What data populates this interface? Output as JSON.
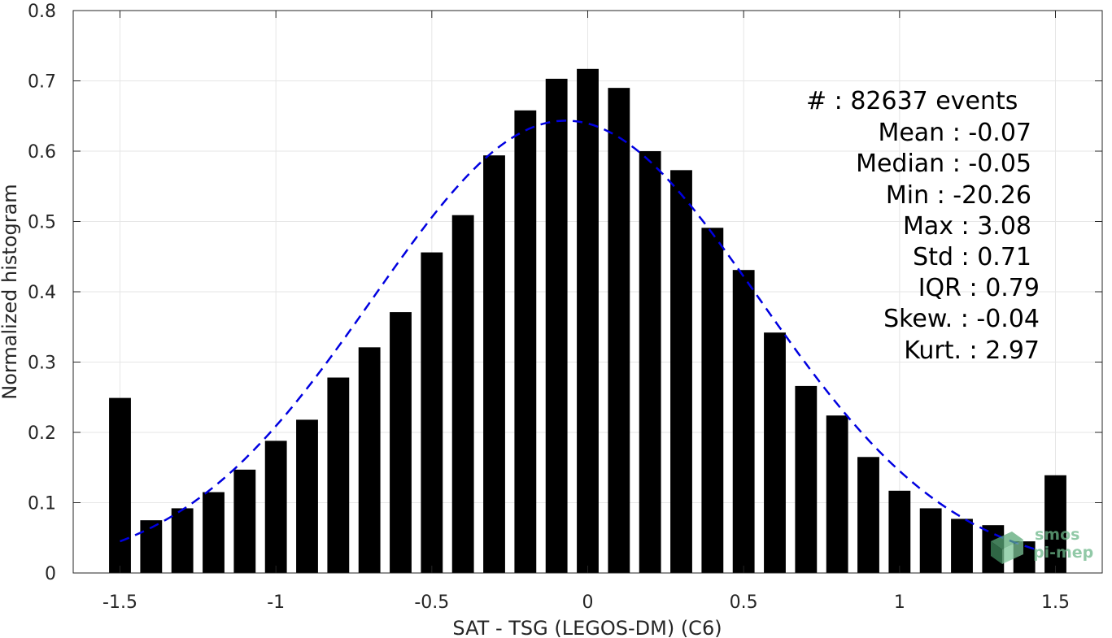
{
  "chart_data": {
    "type": "bar",
    "xlabel": "SAT - TSG (LEGOS-DM) (C6)",
    "ylabel": "Normalized histogram",
    "xlim": [
      -1.65,
      1.65
    ],
    "ylim": [
      0,
      0.8
    ],
    "xticks": [
      "-1.5",
      "-1",
      "-0.5",
      "0",
      "0.5",
      "1",
      "1.5"
    ],
    "xtick_values": [
      -1.5,
      -1,
      -0.5,
      0,
      0.5,
      1,
      1.5
    ],
    "yticks": [
      "0",
      "0.1",
      "0.2",
      "0.3",
      "0.4",
      "0.5",
      "0.6",
      "0.7",
      "0.8"
    ],
    "ytick_values": [
      0,
      0.1,
      0.2,
      0.3,
      0.4,
      0.5,
      0.6,
      0.7,
      0.8
    ],
    "grid": true,
    "bar_color": "#000000",
    "bin_width": 0.1,
    "x": [
      -1.5,
      -1.4,
      -1.3,
      -1.2,
      -1.1,
      -1.0,
      -0.9,
      -0.8,
      -0.7,
      -0.6,
      -0.5,
      -0.4,
      -0.3,
      -0.2,
      -0.1,
      0.0,
      0.1,
      0.2,
      0.3,
      0.4,
      0.5,
      0.6,
      0.7,
      0.8,
      0.9,
      1.0,
      1.1,
      1.2,
      1.3,
      1.4,
      1.5
    ],
    "values": [
      0.249,
      0.075,
      0.092,
      0.115,
      0.147,
      0.188,
      0.218,
      0.278,
      0.321,
      0.371,
      0.456,
      0.509,
      0.594,
      0.658,
      0.703,
      0.717,
      0.69,
      0.6,
      0.573,
      0.491,
      0.431,
      0.342,
      0.266,
      0.224,
      0.165,
      0.117,
      0.092,
      0.077,
      0.068,
      0.045,
      0.139
    ],
    "fit_curve": {
      "type": "normal",
      "mean": -0.07,
      "std": 0.62,
      "color": "#0000e0",
      "style": "dashed",
      "x_range": [
        -1.5,
        1.45
      ]
    },
    "annotations": [
      "#  : 82637 events",
      "Mean : -0.07",
      "Median : -0.05",
      "Min : -20.26",
      "Max : 3.08",
      "Std : 0.71",
      "IQR : 0.79",
      "Skew. : -0.04",
      "Kurt. : 2.97"
    ]
  },
  "logo": {
    "line1": "smos",
    "line2": "pi-mep"
  }
}
